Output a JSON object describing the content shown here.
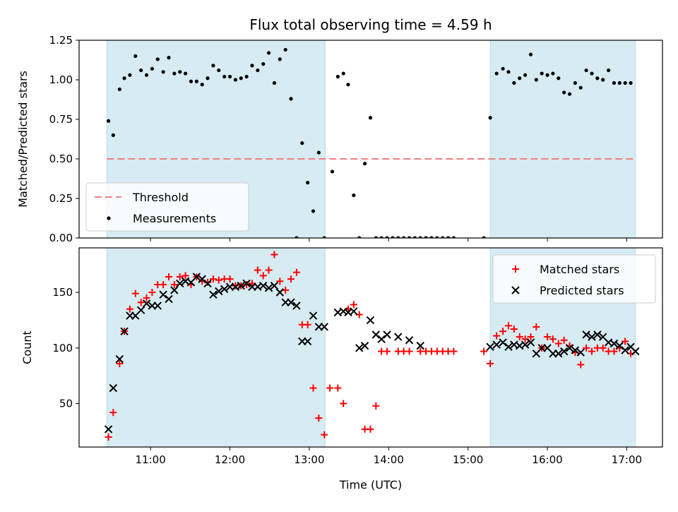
{
  "chart_data": {
    "title": "Flux total observing time = 4.59 h",
    "xlabel": "Time (UTC)",
    "x_unit": "hour of day (UTC)",
    "xlim": [
      10.1,
      17.45
    ],
    "xticks": [
      11,
      12,
      13,
      14,
      15,
      16,
      17
    ],
    "xtick_labels": [
      "11:00",
      "12:00",
      "13:00",
      "14:00",
      "15:00",
      "16:00",
      "17:00"
    ],
    "shaded_intervals": [
      [
        10.45,
        13.2
      ],
      [
        15.28,
        17.11
      ]
    ],
    "shade_color": "#add8e6",
    "panels": [
      {
        "type": "scatter",
        "ylabel": "Matched/Predicted stars",
        "ylim": [
          0.0,
          1.25
        ],
        "yticks": [
          0.0,
          0.25,
          0.5,
          0.75,
          1.0,
          1.25
        ],
        "ytick_labels": [
          "0.00",
          "0.25",
          "0.50",
          "0.75",
          "1.00",
          "1.25"
        ],
        "threshold": {
          "name": "Threshold",
          "value": 0.5,
          "color": "#f08080"
        },
        "legend": {
          "position": "lower-left",
          "entries": [
            "Threshold",
            "Measurements"
          ]
        },
        "series": [
          {
            "name": "Measurements",
            "marker": "dot",
            "color": "#000000",
            "x": [
              10.47,
              10.53,
              10.61,
              10.67,
              10.74,
              10.81,
              10.88,
              10.95,
              11.02,
              11.09,
              11.16,
              11.23,
              11.3,
              11.37,
              11.44,
              11.51,
              11.58,
              11.65,
              11.72,
              11.79,
              11.86,
              11.93,
              12.0,
              12.07,
              12.14,
              12.21,
              12.28,
              12.35,
              12.42,
              12.49,
              12.56,
              12.63,
              12.7,
              12.77,
              12.84,
              12.91,
              12.98,
              13.05,
              13.12,
              13.19,
              13.29,
              13.36,
              13.43,
              13.49,
              13.56,
              13.63,
              13.7,
              13.77,
              13.84,
              13.91,
              13.98,
              14.05,
              14.12,
              14.19,
              14.26,
              14.33,
              14.4,
              14.47,
              14.54,
              14.61,
              14.68,
              14.75,
              14.82,
              15.2,
              15.28,
              15.36,
              15.44,
              15.51,
              15.58,
              15.65,
              15.72,
              15.79,
              15.86,
              15.93,
              16.0,
              16.07,
              16.14,
              16.21,
              16.28,
              16.35,
              16.42,
              16.49,
              16.56,
              16.63,
              16.7,
              16.77,
              16.84,
              16.91,
              16.98,
              17.05
            ],
            "y": [
              0.74,
              0.65,
              0.94,
              1.01,
              1.03,
              1.15,
              1.06,
              1.03,
              1.07,
              1.13,
              1.05,
              1.14,
              1.04,
              1.05,
              1.04,
              0.99,
              0.99,
              0.97,
              1.01,
              1.09,
              1.06,
              1.02,
              1.02,
              1.0,
              1.01,
              1.02,
              1.09,
              1.06,
              1.1,
              1.17,
              0.98,
              1.13,
              1.19,
              0.88,
              0.0,
              0.6,
              0.35,
              0.17,
              0.54,
              0.0,
              0.42,
              1.02,
              1.04,
              0.97,
              0.27,
              0.0,
              0.47,
              0.76,
              0.0,
              0.0,
              0.0,
              0.0,
              0.0,
              0.0,
              0.0,
              0.0,
              0.0,
              0.0,
              0.0,
              0.0,
              0.0,
              0.0,
              0.0,
              0.0,
              0.76,
              1.04,
              1.07,
              1.05,
              0.98,
              1.01,
              1.03,
              1.16,
              1.0,
              1.04,
              1.03,
              1.04,
              1.01,
              0.92,
              0.91,
              0.98,
              0.95,
              1.06,
              1.04,
              1.01,
              1.0,
              1.06,
              0.98,
              0.98,
              0.98,
              0.98
            ]
          }
        ]
      },
      {
        "type": "scatter",
        "ylabel": "Count",
        "ylim": [
          11,
          190
        ],
        "yticks": [
          50,
          100,
          150
        ],
        "ytick_labels": [
          "50",
          "100",
          "150"
        ],
        "legend": {
          "position": "top-right",
          "entries": [
            "Matched stars",
            "Predicted stars"
          ]
        },
        "series": [
          {
            "name": "Matched stars",
            "marker": "plus",
            "color": "#ff0000",
            "x": [
              10.47,
              10.53,
              10.61,
              10.67,
              10.74,
              10.81,
              10.88,
              10.95,
              11.02,
              11.09,
              11.16,
              11.23,
              11.3,
              11.37,
              11.44,
              11.51,
              11.58,
              11.65,
              11.72,
              11.79,
              11.86,
              11.93,
              12.0,
              12.07,
              12.14,
              12.21,
              12.28,
              12.35,
              12.42,
              12.49,
              12.56,
              12.63,
              12.7,
              12.77,
              12.84,
              12.91,
              12.98,
              13.05,
              13.12,
              13.19,
              13.26,
              13.36,
              13.43,
              13.49,
              13.56,
              13.63,
              13.7,
              13.77,
              13.84,
              13.91,
              13.98,
              14.12,
              14.19,
              14.26,
              14.4,
              14.47,
              14.54,
              14.61,
              14.68,
              14.75,
              14.82,
              15.2,
              15.28,
              15.36,
              15.44,
              15.51,
              15.58,
              15.65,
              15.72,
              15.79,
              15.86,
              15.93,
              16.0,
              16.07,
              16.14,
              16.21,
              16.28,
              16.35,
              16.42,
              16.49,
              16.56,
              16.63,
              16.7,
              16.77,
              16.84,
              16.91,
              16.98,
              17.05
            ],
            "y": [
              20,
              42,
              86,
              115,
              135,
              149,
              141,
              145,
              150,
              157,
              157,
              164,
              157,
              164,
              165,
              157,
              164,
              160,
              159,
              162,
              161,
              162,
              162,
              156,
              156,
              157,
              158,
              170,
              165,
              170,
              184,
              160,
              152,
              162,
              168,
              121,
              121,
              64,
              37,
              22,
              64,
              64,
              50,
              135,
              139,
              130,
              27,
              27,
              48,
              97,
              97,
              97,
              97,
              97,
              97,
              97,
              97,
              97,
              97,
              97,
              97,
              97,
              86,
              111,
              115,
              120,
              117,
              110,
              108,
              110,
              119,
              100,
              110,
              108,
              104,
              107,
              102,
              96,
              85,
              100,
              97,
              100,
              100,
              97,
              97,
              100,
              106,
              95
            ]
          },
          {
            "name": "Predicted stars",
            "marker": "x",
            "color": "#000000",
            "x": [
              10.47,
              10.53,
              10.61,
              10.67,
              10.74,
              10.81,
              10.88,
              10.95,
              11.02,
              11.09,
              11.16,
              11.23,
              11.3,
              11.37,
              11.44,
              11.51,
              11.58,
              11.65,
              11.72,
              11.79,
              11.86,
              11.93,
              12.0,
              12.07,
              12.14,
              12.21,
              12.28,
              12.35,
              12.42,
              12.49,
              12.56,
              12.63,
              12.7,
              12.77,
              12.84,
              12.91,
              12.98,
              13.05,
              13.12,
              13.19,
              13.36,
              13.43,
              13.49,
              13.56,
              13.63,
              13.7,
              13.77,
              13.84,
              13.91,
              13.98,
              14.12,
              14.26,
              14.4,
              15.28,
              15.36,
              15.44,
              15.51,
              15.58,
              15.65,
              15.72,
              15.79,
              15.86,
              15.93,
              16.0,
              16.07,
              16.14,
              16.21,
              16.28,
              16.35,
              16.42,
              16.49,
              16.56,
              16.63,
              16.7,
              16.77,
              16.84,
              16.91,
              16.98,
              17.05,
              17.11
            ],
            "y": [
              27,
              64,
              90,
              115,
              129,
              129,
              134,
              140,
              138,
              138,
              148,
              144,
              152,
              158,
              160,
              159,
              164,
              162,
              158,
              148,
              151,
              153,
              155,
              155,
              156,
              158,
              155,
              155,
              156,
              154,
              156,
              150,
              141,
              141,
              138,
              106,
              106,
              129,
              119,
              119,
              132,
              133,
              132,
              133,
              100,
              102,
              125,
              112,
              108,
              112,
              110,
              107,
              102,
              101,
              103,
              105,
              101,
              103,
              102,
              103,
              105,
              95,
              100,
              100,
              95,
              95,
              97,
              100,
              98,
              96,
              112,
              110,
              112,
              110,
              105,
              104,
              102,
              98,
              101,
              97
            ]
          }
        ]
      }
    ]
  }
}
